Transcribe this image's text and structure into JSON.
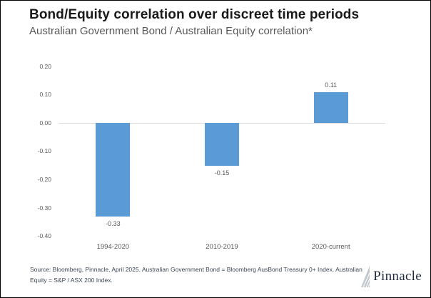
{
  "header": {
    "title": "Bond/Equity correlation over discreet time periods",
    "subtitle": "Australian Government Bond / Australian Equity correlation*"
  },
  "chart_data": {
    "type": "bar",
    "categories": [
      "1994-2020",
      "2010-2019",
      "2020-current"
    ],
    "values": [
      -0.33,
      -0.15,
      0.11
    ],
    "data_labels": [
      "-0.33",
      "-0.15",
      "0.11"
    ],
    "title": "Bond/Equity correlation over discreet time periods",
    "subtitle": "Australian Government Bond / Australian Equity correlation*",
    "xlabel": "",
    "ylabel": "",
    "ylim": [
      -0.4,
      0.2
    ],
    "yticks": [
      "0.20",
      "0.10",
      "0.00",
      "-0.10",
      "-0.20",
      "-0.30",
      "-0.40"
    ],
    "grid": "zero-line-only",
    "legend": "none",
    "colors": {
      "bar": "#5B9BD5",
      "gridline": "#DCDCDC",
      "labels": "#595959"
    }
  },
  "footer": {
    "source": "Source: Bloomberg, Pinnacle, April 2025. Australian Government Bond = Bloomberg AusBond Treasury 0+ Index. Australian Equity = S&P / ASX 200 Index.",
    "logo_text": "Pinnacle"
  }
}
